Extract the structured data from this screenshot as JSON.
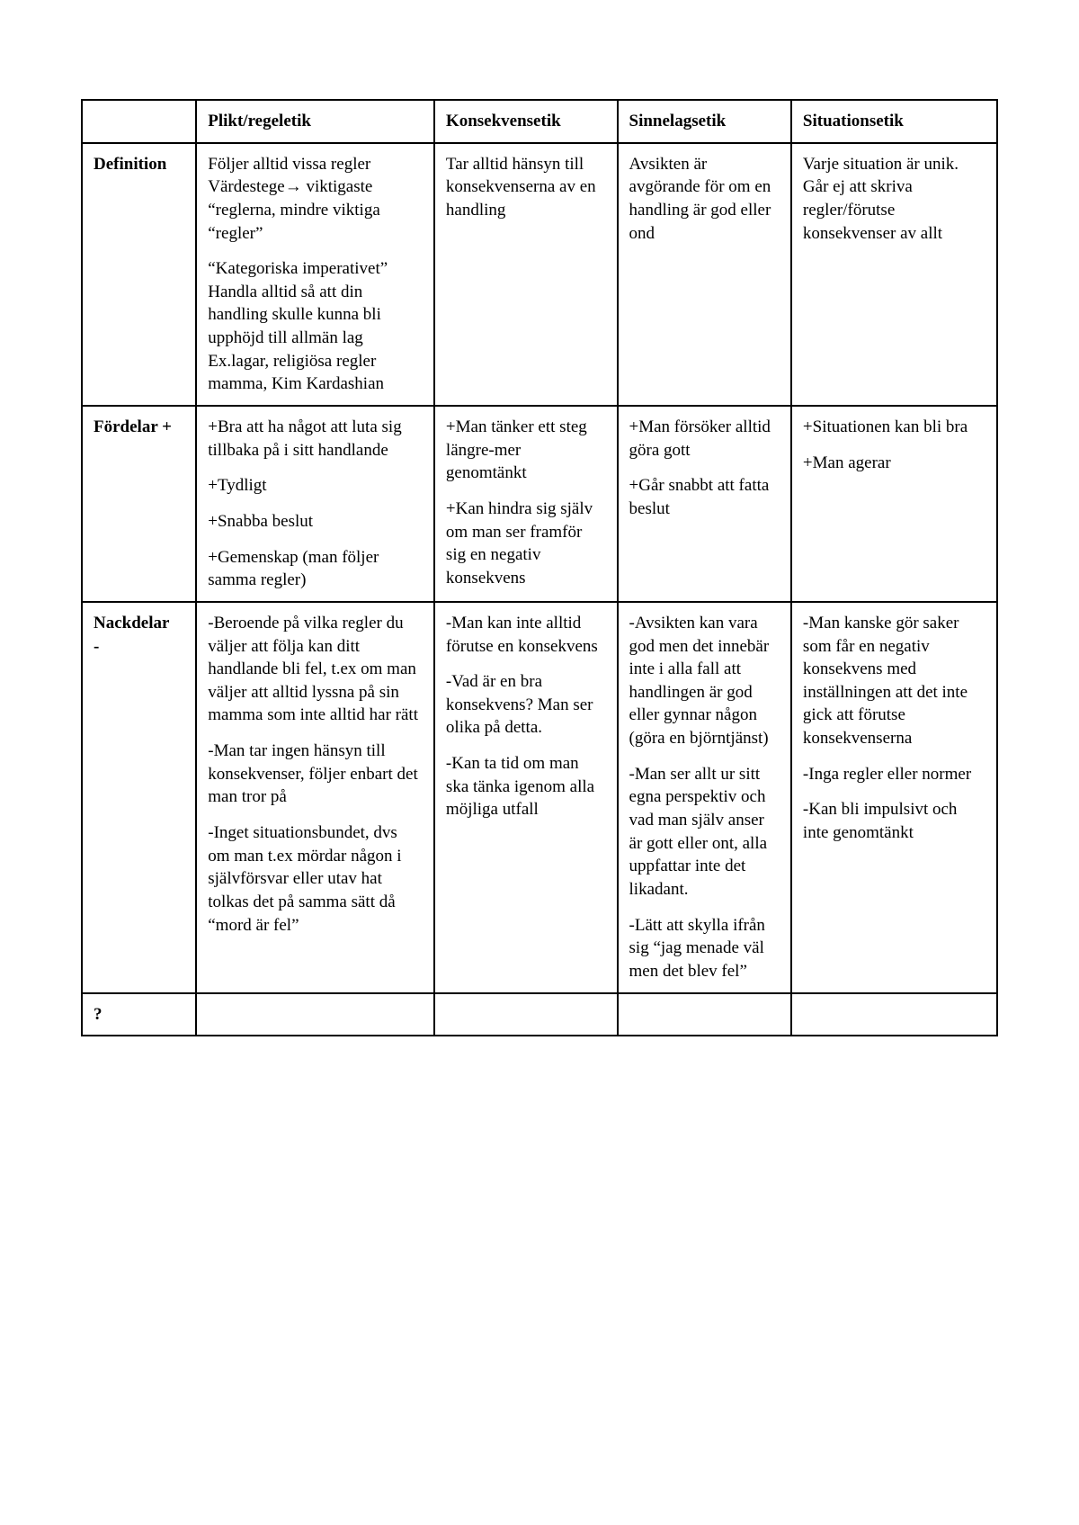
{
  "table": {
    "columns": [
      "",
      "Plikt/regeletik",
      "Konsekvensetik",
      "Sinnelagsetik",
      "Situationsetik"
    ],
    "col_widths_pct": [
      12.5,
      26,
      20,
      19,
      22.5
    ],
    "border_color": "#000000",
    "background_color": "#ffffff",
    "font_family": "Times New Roman",
    "font_size_pt": 14,
    "rows": [
      {
        "header": "Definition",
        "cells": [
          [
            "Följer alltid vissa regler Värdestege→ viktigaste “reglerna, mindre viktiga “regler”",
            "“Kategoriska imperativet” Handla alltid så att din handling skulle kunna bli upphöjd till allmän lag Ex.lagar, religiösa regler mamma, Kim Kardashian"
          ],
          [
            "Tar alltid hänsyn till konsekvenserna av en handling"
          ],
          [
            "Avsikten är avgörande för om en handling är god eller ond"
          ],
          [
            "Varje situation är unik. Går ej att skriva regler/förutse konsekvenser av allt"
          ]
        ]
      },
      {
        "header": "Fördelar +",
        "cells": [
          [
            "+Bra att ha något att luta sig tillbaka på i sitt handlande",
            "+Tydligt",
            "+Snabba beslut",
            "+Gemenskap (man följer samma regler)"
          ],
          [
            "+Man tänker ett steg längre-mer genomtänkt",
            "+Kan hindra sig själv om man ser framför sig en negativ konsekvens"
          ],
          [
            "+Man försöker alltid göra gott",
            "+Går snabbt att fatta beslut"
          ],
          [
            "+Situationen kan bli bra",
            "+Man agerar"
          ]
        ]
      },
      {
        "header": "Nackdelar -",
        "cells": [
          [
            "-Beroende på vilka regler du väljer att följa kan ditt handlande bli fel, t.ex om man väljer att alltid lyssna på sin mamma som inte alltid har rätt",
            "-Man tar ingen hänsyn till konsekvenser, följer enbart det man tror på",
            "-Inget situationsbundet, dvs om man t.ex mördar någon i självförsvar eller utav hat tolkas det på samma sätt då “mord är fel”"
          ],
          [
            "-Man kan inte alltid förutse en konsekvens",
            "-Vad är en bra konsekvens? Man ser olika på detta.",
            "-Kan ta tid om man ska tänka igenom alla möjliga utfall"
          ],
          [
            "-Avsikten kan vara god men det innebär inte i alla fall att handlingen är god eller gynnar någon (göra en björntjänst)",
            "-Man ser allt ur sitt egna perspektiv och vad man själv anser är gott eller ont, alla uppfattar inte det likadant.",
            "-Lätt att skylla ifrån sig “jag menade väl men det blev fel”"
          ],
          [
            "-Man kanske gör saker som får en negativ konsekvens med inställningen att det inte gick att förutse konsekvenserna",
            "-Inga regler eller normer",
            "-Kan bli impulsivt och inte genomtänkt"
          ]
        ]
      },
      {
        "header": "?",
        "cells": [
          [
            ""
          ],
          [
            ""
          ],
          [
            ""
          ],
          [
            ""
          ]
        ]
      }
    ]
  }
}
